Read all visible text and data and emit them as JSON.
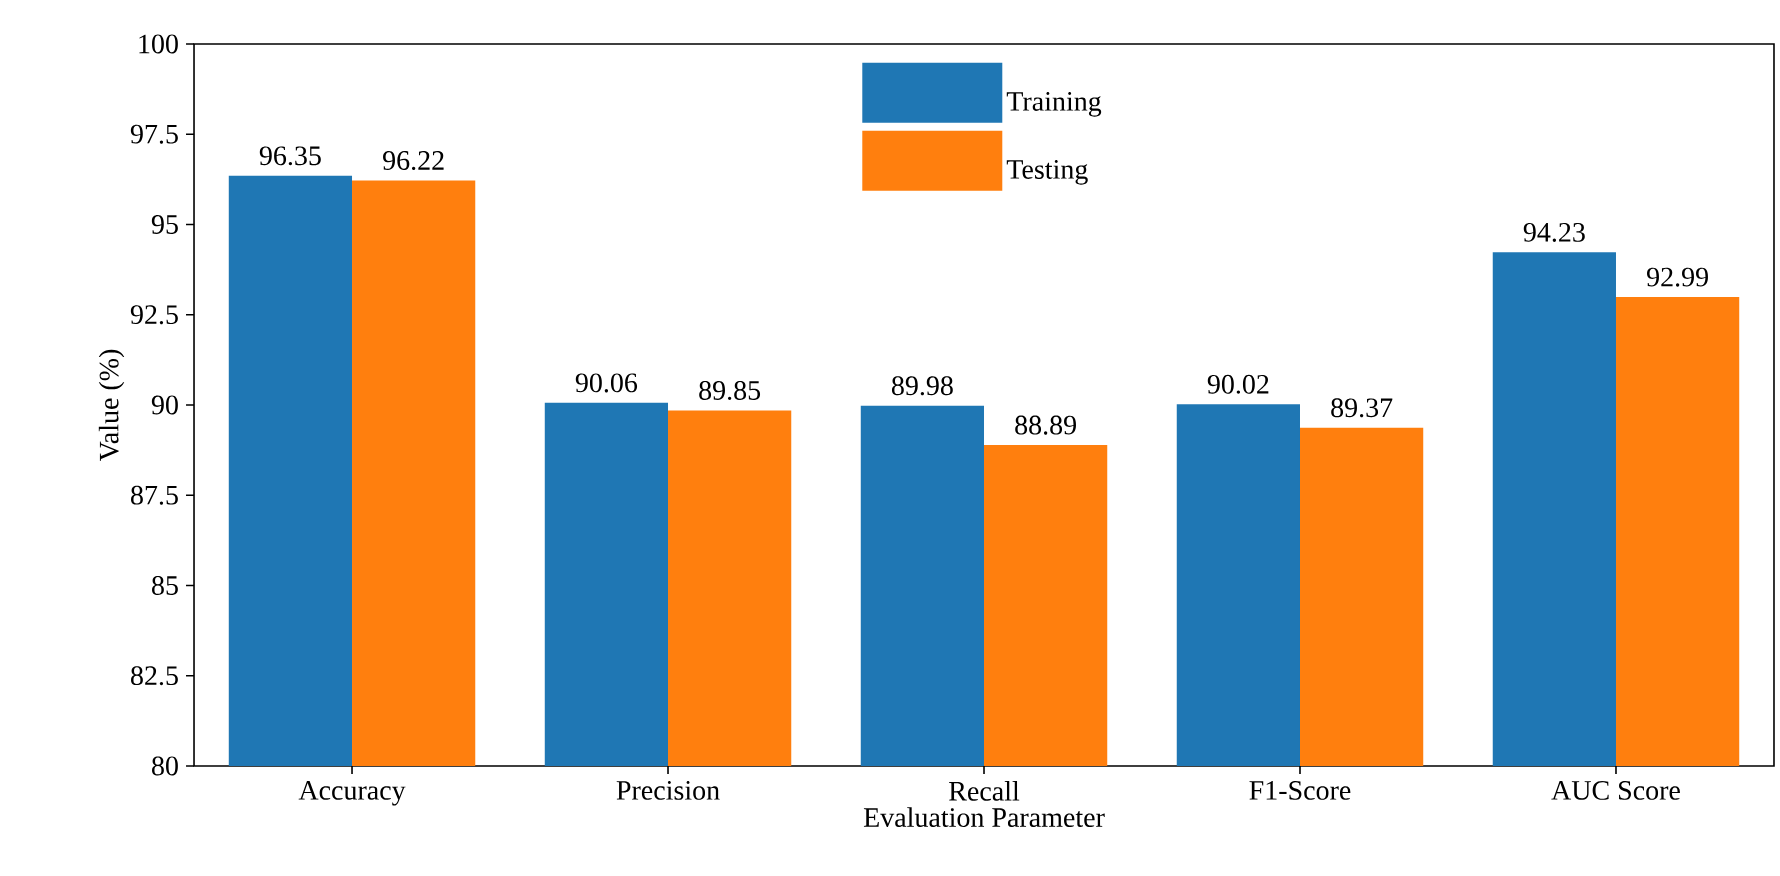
{
  "chart_data": {
    "type": "bar",
    "xlabel": "Evaluation Parameter",
    "ylabel": "Value (%)",
    "categories": [
      "Accuracy",
      "Precision",
      "Recall",
      "F1-Score",
      "AUC Score"
    ],
    "series": [
      {
        "name": "Training",
        "color": "#1f77b4",
        "values": [
          96.35,
          90.06,
          89.98,
          90.02,
          94.23
        ]
      },
      {
        "name": "Testing",
        "color": "#ff7f0e",
        "values": [
          96.22,
          89.85,
          88.89,
          89.37,
          92.99
        ]
      }
    ],
    "ylim": [
      80,
      100
    ],
    "yticks": [
      80,
      82.5,
      85,
      87.5,
      90,
      92.5,
      95,
      97.5,
      100
    ],
    "data_labels": true,
    "legend": "top",
    "grid": false
  }
}
